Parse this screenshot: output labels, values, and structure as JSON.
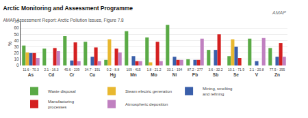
{
  "chart_data": {
    "type": "bar",
    "title": "Arctic Monitoring and Assessment Programme",
    "subtitle": "AMAP Assessment Report: Arctic Pollution Issues, Figure 7.8",
    "categories": [
      "As",
      "Cd",
      "Cr",
      "Cu",
      "Hg",
      "Mn",
      "Mo",
      "Ni",
      "Pb",
      "Sb",
      "Se",
      "V",
      "Zn"
    ],
    "series": [
      {
        "name": "Waste disposal",
        "color": "#5aaa46",
        "values": [
          32,
          27,
          47,
          38,
          9,
          55,
          45,
          65,
          10,
          25,
          15,
          43,
          28
        ]
      },
      {
        "name": "Steam electric generation",
        "color": "#e8b830",
        "values": [
          21,
          0,
          0,
          0,
          42,
          0,
          5,
          0,
          0,
          0,
          42,
          0,
          0
        ]
      },
      {
        "name": "Mining, smelting\nand refining",
        "color": "#3a5faa",
        "values": [
          20,
          0,
          8,
          14,
          0,
          15,
          0,
          14,
          9,
          25,
          30,
          7,
          14
        ]
      },
      {
        "name": "Manufacturing\nprocesses",
        "color": "#d42020",
        "values": [
          20,
          28,
          37,
          29,
          27,
          7,
          38,
          9,
          9,
          50,
          12,
          0,
          36
        ]
      },
      {
        "name": "Atmospheric deposition",
        "color": "#c080c0",
        "values": [
          12,
          23,
          7,
          7,
          21,
          7,
          7,
          9,
          43,
          0,
          0,
          44,
          14
        ]
      }
    ],
    "ylim": [
      0,
      70
    ],
    "yticks": [
      0,
      10,
      20,
      30,
      40,
      50,
      60,
      70
    ],
    "ylabel": "%",
    "y2lim": [
      0,
      70
    ],
    "y2ticks": [
      0,
      10,
      20,
      30,
      40,
      50,
      60,
      70
    ],
    "y2label": "%",
    "annotations": [
      {
        "x": "As",
        "text": "11.6 - 70.3"
      },
      {
        "x": "Cd",
        "text": "2.1 - 16.3"
      },
      {
        "x": "Cr",
        "text": "45.6 - 239"
      },
      {
        "x": "Cu",
        "text": "34.7 - 191"
      },
      {
        "x": "Hg",
        "text": "0.2 - 8.8"
      },
      {
        "x": "Mn",
        "text": "109 - 415"
      },
      {
        "x": "Mo",
        "text": "1.8 - 21.2"
      },
      {
        "x": "Ni",
        "text": "33.1 - 194"
      },
      {
        "x": "Pb",
        "text": "87.2 - 277"
      },
      {
        "x": "Sb",
        "text": "3.6 - 32.2"
      },
      {
        "x": "Se",
        "text": "10.1 - 71.9"
      },
      {
        "x": "V",
        "text": "2.1 - 20.8"
      },
      {
        "x": "Zn",
        "text": "77.5 - 395"
      },
      {
        "text": "AMAP"
      }
    ],
    "grid": true,
    "legend": "bottom"
  }
}
